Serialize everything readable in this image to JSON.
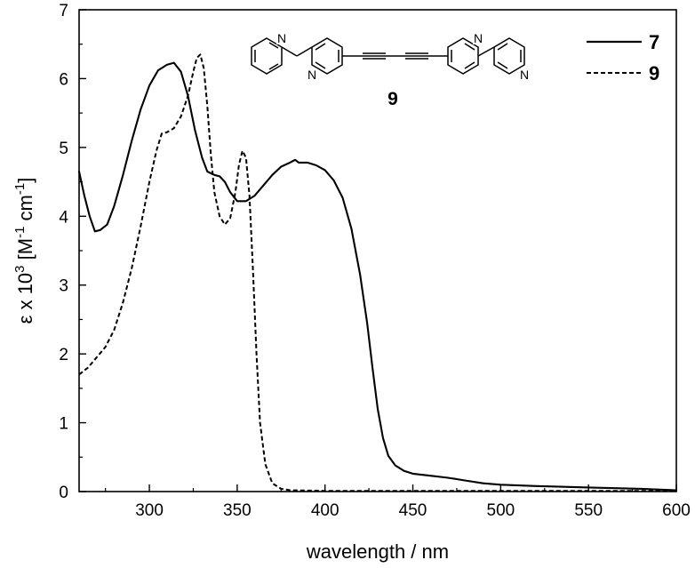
{
  "chart_data": {
    "type": "line",
    "xlabel": "wavelength / nm",
    "ylabel": {
      "prefix": "ε x 10",
      "sup1": "3",
      "mid": " [M",
      "sup2": "-1",
      "mid2": " cm",
      "sup3": "-1",
      "suffix": "]"
    },
    "xlim": [
      260,
      600
    ],
    "ylim": [
      0,
      7
    ],
    "xticks": [
      "300",
      "350",
      "400",
      "450",
      "500",
      "550",
      "600"
    ],
    "yticks": [
      "0",
      "1",
      "2",
      "3",
      "4",
      "5",
      "6",
      "7"
    ],
    "grid": false,
    "legend_position": "top-right",
    "series": [
      {
        "name": "7",
        "style": "solid",
        "color": "#000000",
        "points": [
          [
            260,
            4.65
          ],
          [
            263,
            4.3
          ],
          [
            266,
            4.0
          ],
          [
            269,
            3.78
          ],
          [
            272,
            3.8
          ],
          [
            276,
            3.88
          ],
          [
            280,
            4.15
          ],
          [
            285,
            4.6
          ],
          [
            290,
            5.1
          ],
          [
            295,
            5.55
          ],
          [
            300,
            5.9
          ],
          [
            305,
            6.12
          ],
          [
            310,
            6.2
          ],
          [
            314,
            6.23
          ],
          [
            318,
            6.1
          ],
          [
            322,
            5.75
          ],
          [
            326,
            5.25
          ],
          [
            330,
            4.85
          ],
          [
            333,
            4.65
          ],
          [
            337,
            4.6
          ],
          [
            340,
            4.58
          ],
          [
            343,
            4.5
          ],
          [
            346,
            4.35
          ],
          [
            350,
            4.22
          ],
          [
            355,
            4.22
          ],
          [
            360,
            4.3
          ],
          [
            365,
            4.45
          ],
          [
            370,
            4.6
          ],
          [
            375,
            4.72
          ],
          [
            380,
            4.78
          ],
          [
            383,
            4.82
          ],
          [
            385,
            4.78
          ],
          [
            390,
            4.78
          ],
          [
            395,
            4.74
          ],
          [
            400,
            4.67
          ],
          [
            405,
            4.52
          ],
          [
            410,
            4.27
          ],
          [
            415,
            3.82
          ],
          [
            420,
            3.15
          ],
          [
            424,
            2.45
          ],
          [
            427,
            1.8
          ],
          [
            430,
            1.2
          ],
          [
            433,
            0.78
          ],
          [
            436,
            0.52
          ],
          [
            440,
            0.38
          ],
          [
            445,
            0.3
          ],
          [
            450,
            0.26
          ],
          [
            460,
            0.23
          ],
          [
            470,
            0.2
          ],
          [
            480,
            0.16
          ],
          [
            490,
            0.12
          ],
          [
            500,
            0.1
          ],
          [
            520,
            0.08
          ],
          [
            550,
            0.06
          ],
          [
            580,
            0.04
          ],
          [
            600,
            0.02
          ]
        ]
      },
      {
        "name": "9",
        "style": "dashed",
        "color": "#000000",
        "points": [
          [
            260,
            1.7
          ],
          [
            265,
            1.8
          ],
          [
            270,
            1.95
          ],
          [
            275,
            2.1
          ],
          [
            280,
            2.35
          ],
          [
            285,
            2.75
          ],
          [
            290,
            3.25
          ],
          [
            295,
            3.85
          ],
          [
            300,
            4.5
          ],
          [
            304,
            4.95
          ],
          [
            307,
            5.2
          ],
          [
            310,
            5.22
          ],
          [
            314,
            5.28
          ],
          [
            318,
            5.45
          ],
          [
            322,
            5.75
          ],
          [
            325,
            6.1
          ],
          [
            327,
            6.3
          ],
          [
            329,
            6.35
          ],
          [
            331,
            6.15
          ],
          [
            333,
            5.6
          ],
          [
            335,
            4.9
          ],
          [
            337,
            4.35
          ],
          [
            340,
            4.0
          ],
          [
            343,
            3.88
          ],
          [
            346,
            3.97
          ],
          [
            349,
            4.35
          ],
          [
            351,
            4.75
          ],
          [
            353,
            4.95
          ],
          [
            355,
            4.85
          ],
          [
            357,
            4.3
          ],
          [
            359,
            3.2
          ],
          [
            361,
            2.0
          ],
          [
            363,
            1.0
          ],
          [
            366,
            0.4
          ],
          [
            370,
            0.12
          ],
          [
            375,
            0.04
          ],
          [
            380,
            0.02
          ],
          [
            400,
            0.01
          ],
          [
            450,
            0.01
          ],
          [
            500,
            0.01
          ],
          [
            550,
            0.01
          ],
          [
            600,
            0.01
          ]
        ]
      }
    ],
    "annotations": {
      "compound_label": "9",
      "atom_label": "N"
    }
  }
}
